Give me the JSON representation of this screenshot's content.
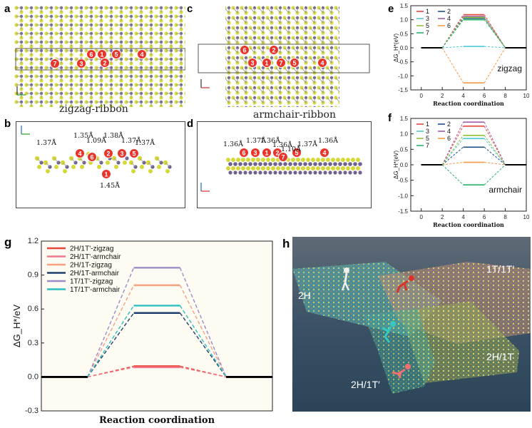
{
  "panels": {
    "a": {
      "label": "a",
      "caption": "zigzag-ribbon",
      "markers": [
        "7",
        "3",
        "6",
        "1",
        "5",
        "4",
        "2"
      ]
    },
    "b": {
      "label": "b",
      "markers": [
        "4",
        "6",
        "2",
        "3",
        "5",
        "1"
      ],
      "bonds": [
        "1.37Å",
        "1.35Å",
        "1.09Å",
        "1.38Å",
        "1.37Å",
        "1.37Å",
        "1.45Å"
      ]
    },
    "c": {
      "label": "c",
      "caption": "armchair-ribbon",
      "markers": [
        "6",
        "2",
        "3",
        "1",
        "7",
        "5",
        "4"
      ]
    },
    "d": {
      "label": "d",
      "markers": [
        "6",
        "3",
        "1",
        "2",
        "7",
        "5",
        "4"
      ],
      "bonds": [
        "1.36Å",
        "1.37Å",
        "1.36Å",
        "1.36Å",
        "1.10Å",
        "1.37Å",
        "1.36Å"
      ]
    },
    "h": {
      "label": "h",
      "labels": [
        "2H",
        "1T/1T′",
        "2H/1T",
        "2H/1T′"
      ]
    }
  },
  "colors": {
    "zz_2H1Tp": "#e8473c",
    "ac_2H1Tp": "#f07a8a",
    "zz_2H1T": "#f4a27f",
    "ac_2H1T": "#1f3f6e",
    "zz_1T1Tp": "#9b8bc8",
    "ac_1T1Tp": "#2bbfbf"
  },
  "chart_data": [
    {
      "id": "e",
      "label": "e",
      "type": "line",
      "annotation": "zigzag",
      "xlabel": "Reaction coordination",
      "ylabel": "ΔG_H*(eV)",
      "xlim": [
        -1,
        10
      ],
      "ylim": [
        -1.5,
        1.5
      ],
      "xticks": [
        "0",
        "2",
        "4",
        "6",
        "8",
        "10"
      ],
      "yticks": [
        "-1.5",
        "-1.0",
        "-0.5",
        "0.0",
        "0.5",
        "1.0",
        "1.5"
      ],
      "x": [
        0,
        2,
        4,
        6,
        8,
        10
      ],
      "legend": [
        "1",
        "2",
        "3",
        "4",
        "5",
        "6",
        "7"
      ],
      "series": [
        {
          "name": "1",
          "color": "#e8473c",
          "values": [
            0,
            0,
            1.18,
            1.18,
            0,
            0
          ]
        },
        {
          "name": "2",
          "color": "#1f4e8c",
          "values": [
            0,
            0,
            1.05,
            1.05,
            0,
            0
          ]
        },
        {
          "name": "3",
          "color": "#4fc7d8",
          "values": [
            0,
            0,
            0.05,
            0.05,
            0,
            0
          ]
        },
        {
          "name": "4",
          "color": "#a05fa8",
          "values": [
            0,
            0,
            1.12,
            1.12,
            0,
            0
          ]
        },
        {
          "name": "5",
          "color": "#8ac23c",
          "values": [
            0,
            0,
            1.08,
            1.08,
            0,
            0
          ]
        },
        {
          "name": "6",
          "color": "#f29a4a",
          "values": [
            0,
            0,
            -1.25,
            -1.25,
            0,
            0
          ]
        },
        {
          "name": "7",
          "color": "#27b36b",
          "values": [
            0,
            0,
            1.0,
            1.0,
            0,
            0
          ]
        }
      ]
    },
    {
      "id": "f",
      "label": "f",
      "type": "line",
      "annotation": "armchair",
      "xlabel": "Reaction coordination",
      "ylabel": "ΔG_H*(eV)",
      "xlim": [
        -1,
        10
      ],
      "ylim": [
        -1.5,
        1.5
      ],
      "xticks": [
        "0",
        "2",
        "4",
        "6",
        "8",
        "10"
      ],
      "yticks": [
        "-1.5",
        "-1.0",
        "-0.5",
        "0.0",
        "0.5",
        "1.0",
        "1.5"
      ],
      "x": [
        0,
        2,
        4,
        6,
        8,
        10
      ],
      "legend": [
        "1",
        "2",
        "3",
        "4",
        "5",
        "6",
        "7"
      ],
      "series": [
        {
          "name": "1",
          "color": "#e8473c",
          "values": [
            0,
            0,
            1.25,
            1.25,
            0,
            0
          ]
        },
        {
          "name": "2",
          "color": "#1f4e8c",
          "values": [
            0,
            0,
            0.57,
            0.57,
            0,
            0
          ]
        },
        {
          "name": "3",
          "color": "#4fc7d8",
          "values": [
            0,
            0,
            0.85,
            0.85,
            0,
            0
          ]
        },
        {
          "name": "4",
          "color": "#a05fa8",
          "values": [
            0,
            0,
            1.38,
            1.38,
            0,
            0
          ]
        },
        {
          "name": "5",
          "color": "#8ac23c",
          "values": [
            0,
            0,
            0.95,
            0.95,
            0,
            0
          ]
        },
        {
          "name": "6",
          "color": "#f29a4a",
          "values": [
            0,
            0,
            0.08,
            0.08,
            0,
            0
          ]
        },
        {
          "name": "7",
          "color": "#27b36b",
          "values": [
            0,
            0,
            -0.65,
            -0.65,
            0,
            0
          ]
        }
      ]
    },
    {
      "id": "g",
      "label": "g",
      "type": "line",
      "xlabel": "Reaction coordination",
      "ylabel": "ΔG_H*/eV",
      "xlim": [
        0,
        10
      ],
      "ylim": [
        -0.3,
        1.2
      ],
      "yticks": [
        "-0.3",
        "0.0",
        "0.3",
        "0.6",
        "0.9",
        "1.2"
      ],
      "x": [
        0,
        2,
        4,
        6,
        8,
        10
      ],
      "series": [
        {
          "name": "2H/1T'-zigzag",
          "color": "#e8473c",
          "values": [
            0,
            0,
            0.095,
            0.095,
            0,
            0
          ]
        },
        {
          "name": "2H/1T'-armchair",
          "color": "#f07a8a",
          "values": [
            0,
            0,
            0.085,
            0.085,
            0,
            0
          ]
        },
        {
          "name": "2H/1T-zigzag",
          "color": "#f4a27f",
          "values": [
            0,
            0,
            0.81,
            0.81,
            0,
            0
          ]
        },
        {
          "name": "2H/1T-armchair",
          "color": "#1f3f6e",
          "values": [
            0,
            0,
            0.565,
            0.565,
            0,
            0
          ]
        },
        {
          "name": "1T/1T'-zigzag",
          "color": "#9b8bc8",
          "values": [
            0,
            0,
            0.965,
            0.965,
            0,
            0
          ]
        },
        {
          "name": "1T/1T'-armchair",
          "color": "#2bbfbf",
          "values": [
            0,
            0,
            0.63,
            0.63,
            0,
            0
          ]
        }
      ]
    }
  ]
}
